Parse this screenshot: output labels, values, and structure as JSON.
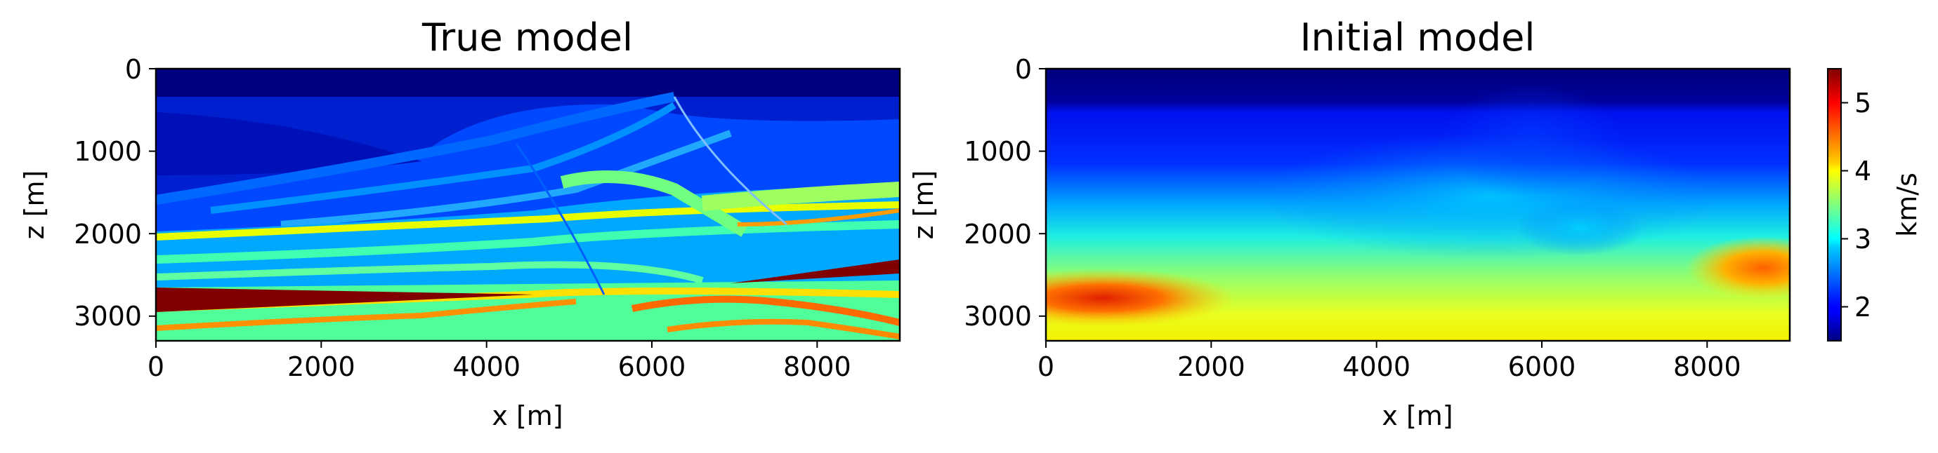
{
  "colors": {
    "accent_fault": "#800000",
    "water": "#00007f",
    "frame": "#000000"
  },
  "chart_data": [
    {
      "type": "heatmap",
      "title": "True model",
      "xlabel": "x [m]",
      "ylabel": "z [m]",
      "xlim": [
        0,
        9000
      ],
      "ylim": [
        3300,
        0
      ],
      "y_inverted": true,
      "xticks": [
        0,
        2000,
        4000,
        6000,
        8000
      ],
      "yticks": [
        0,
        1000,
        2000,
        3000
      ],
      "colormap": "jet",
      "units": "km/s",
      "clim": [
        1.5,
        5.5
      ]
    },
    {
      "type": "heatmap",
      "title": "Initial model",
      "xlabel": "x [m]",
      "ylabel": "z [m]",
      "xlim": [
        0,
        9000
      ],
      "ylim": [
        3300,
        0
      ],
      "y_inverted": true,
      "xticks": [
        0,
        2000,
        4000,
        6000,
        8000
      ],
      "yticks": [
        0,
        1000,
        2000,
        3000
      ],
      "colormap": "jet",
      "units": "km/s",
      "clim": [
        1.5,
        5.5
      ]
    }
  ],
  "colorbar": {
    "label": "km/s",
    "ticks": [
      2,
      3,
      4,
      5
    ],
    "range": [
      1.5,
      5.5
    ],
    "colormap": "jet"
  }
}
